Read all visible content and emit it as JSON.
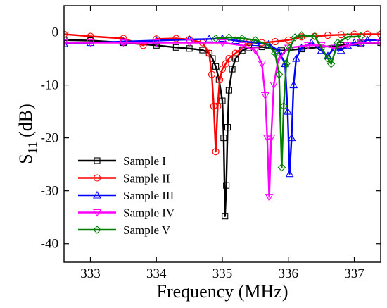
{
  "chart_data": {
    "type": "line",
    "title": "",
    "xlabel": "Frequency (MHz)",
    "ylabel_main": "S",
    "ylabel_sub": "11",
    "ylabel_unit": "(dB)",
    "xlim": [
      332.6,
      337.4
    ],
    "ylim": [
      -43.5,
      5
    ],
    "xticks": [
      333,
      334,
      335,
      336,
      337
    ],
    "yticks": [
      0,
      -10,
      -20,
      -30,
      -40
    ],
    "grid": false,
    "legend_position": "bottom-left",
    "series": [
      {
        "name": "Sample I",
        "color": "#000000",
        "marker": "square",
        "x": [
          332.6,
          333.0,
          333.5,
          334.0,
          334.3,
          334.5,
          334.7,
          334.8,
          334.85,
          334.9,
          334.95,
          335.0,
          335.02,
          335.04,
          335.06,
          335.08,
          335.1,
          335.15,
          335.2,
          335.3,
          335.4,
          335.6,
          335.9,
          336.2,
          336.5,
          336.8,
          337.1,
          337.4
        ],
        "y": [
          -1.5,
          -1.6,
          -2.0,
          -2.5,
          -2.9,
          -3.1,
          -3.4,
          -4.0,
          -5.0,
          -6.5,
          -9.0,
          -13.0,
          -20.0,
          -34.8,
          -29.0,
          -18.0,
          -11.0,
          -7.0,
          -5.0,
          -3.5,
          -3.0,
          -2.8,
          -3.5,
          -3.2,
          -2.8,
          -2.5,
          -2.2,
          -2.0
        ]
      },
      {
        "name": "Sample II",
        "color": "#ff0000",
        "marker": "circle",
        "x": [
          332.6,
          333.0,
          333.5,
          333.8,
          334.0,
          334.3,
          334.5,
          334.7,
          334.8,
          334.84,
          334.87,
          334.9,
          334.93,
          334.96,
          335.0,
          335.05,
          335.1,
          335.2,
          335.4,
          335.6,
          335.8,
          336.0,
          336.2,
          336.4,
          336.6,
          336.8,
          337.0,
          337.2,
          337.4
        ],
        "y": [
          -0.4,
          -0.8,
          -1.2,
          -2.5,
          -1.3,
          -1.2,
          -1.4,
          -2.0,
          -4.0,
          -8.0,
          -14.0,
          -22.6,
          -14.0,
          -9.0,
          -7.0,
          -6.0,
          -5.0,
          -4.0,
          -2.0,
          -2.0,
          -1.8,
          -1.5,
          -0.9,
          -0.8,
          -0.6,
          -0.5,
          -0.4,
          -0.4,
          -0.4
        ]
      },
      {
        "name": "Sample III",
        "color": "#0000ff",
        "marker": "triangle-up",
        "x": [
          332.6,
          333.0,
          333.5,
          334.0,
          334.5,
          334.8,
          335.0,
          335.2,
          335.5,
          335.7,
          335.85,
          335.95,
          335.99,
          336.02,
          336.05,
          336.08,
          336.12,
          336.2,
          336.35,
          336.5,
          336.6,
          336.7,
          336.8,
          336.9,
          337.0,
          337.1,
          337.2,
          337.4
        ],
        "y": [
          -2.2,
          -2.0,
          -1.8,
          -1.6,
          -1.4,
          -1.3,
          -1.2,
          -1.6,
          -2.0,
          -2.3,
          -3.5,
          -6.0,
          -15.0,
          -26.8,
          -20.0,
          -10.0,
          -5.0,
          -3.0,
          -2.0,
          -3.5,
          -4.5,
          -3.0,
          -3.5,
          -2.5,
          -2.0,
          -2.0,
          -1.5,
          -1.5
        ]
      },
      {
        "name": "Sample IV",
        "color": "#ff00ff",
        "marker": "triangle-down",
        "x": [
          332.6,
          333.0,
          333.5,
          334.0,
          334.5,
          335.0,
          335.3,
          335.5,
          335.6,
          335.65,
          335.68,
          335.71,
          335.74,
          335.78,
          335.85,
          336.0,
          336.3,
          336.5,
          336.7,
          336.9,
          337.1,
          337.4
        ],
        "y": [
          -2.0,
          -2.0,
          -2.0,
          -2.0,
          -2.0,
          -2.0,
          -2.5,
          -3.5,
          -6.0,
          -12.0,
          -20.0,
          -31.2,
          -20.0,
          -10.0,
          -5.0,
          -3.0,
          -2.5,
          -2.5,
          -3.0,
          -2.5,
          -2.0,
          -2.0
        ]
      },
      {
        "name": "Sample V",
        "color": "#008000",
        "marker": "diamond",
        "x": [
          334.9,
          335.1,
          335.3,
          335.5,
          335.7,
          335.8,
          335.86,
          335.9,
          335.93,
          335.97,
          336.02,
          336.1,
          336.2,
          336.4,
          336.6,
          336.65,
          336.75,
          336.9,
          337.1
        ],
        "y": [
          -1.2,
          -1.0,
          -1.2,
          -1.5,
          -2.5,
          -4.0,
          -8.0,
          -25.6,
          -14.0,
          -6.0,
          -3.0,
          -1.0,
          -0.6,
          -0.8,
          -5.0,
          -6.0,
          -2.0,
          -0.9,
          -0.8
        ]
      }
    ]
  }
}
